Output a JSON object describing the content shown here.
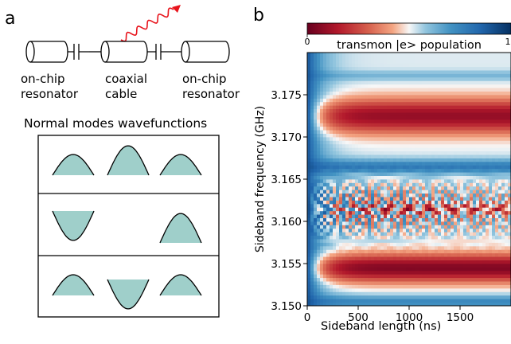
{
  "panel_a": {
    "label": "a",
    "circuit_labels": [
      {
        "line1": "on-chip",
        "line2": "resonator"
      },
      {
        "line1": "coaxial",
        "line2": "cable"
      },
      {
        "line1": "on-chip",
        "line2": "resonator"
      }
    ],
    "modes_title": "Normal modes wavefunctions",
    "modes": [
      {
        "amplitudes": [
          0.5,
          0.71,
          0.5
        ]
      },
      {
        "amplitudes": [
          -0.71,
          0,
          0.71
        ]
      },
      {
        "amplitudes": [
          0.5,
          -0.71,
          0.5
        ]
      }
    ],
    "colors": {
      "wave_fill": "#9fcfca",
      "photon": "#e8141c"
    }
  },
  "panel_b": {
    "label": "b"
  },
  "chart_data": {
    "type": "heatmap",
    "title": "",
    "xlabel": "Sideband length (ns)",
    "ylabel": "Sideband frequency (GHz)",
    "xlim": [
      0,
      2000
    ],
    "ylim": [
      3.15,
      3.18
    ],
    "xticks": [
      "0",
      "500",
      "1000",
      "1500"
    ],
    "yticks": [
      "3.150",
      "3.155",
      "3.160",
      "3.165",
      "3.170",
      "3.175"
    ],
    "colorbar": {
      "label": "transmon |e> population",
      "min_label": "0",
      "max_label": "1",
      "colormap": "RdBu",
      "position": "top"
    },
    "features": {
      "high_population_bands_GHz": [
        3.1545,
        3.1725
      ],
      "low_population_bands_GHz": [
        3.1505,
        3.1665,
        3.1772
      ],
      "resonance_GHz": 3.1615,
      "oscillation_period_ns": 220
    }
  }
}
